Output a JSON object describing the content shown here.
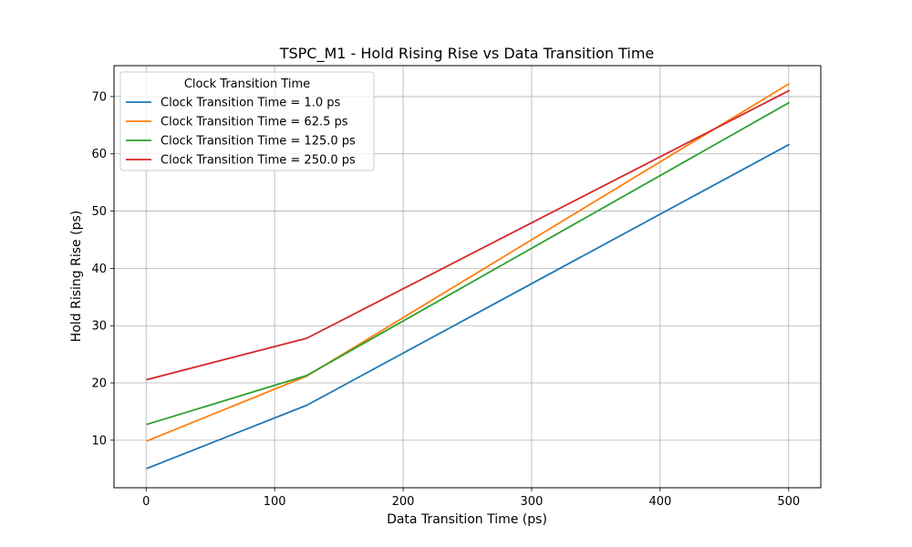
{
  "chart_data": {
    "type": "line",
    "title": "TSPC_M1 - Hold Rising Rise vs Data Transition Time",
    "xlabel": "Data Transition Time (ps)",
    "ylabel": "Hold Rising Rise (ps)",
    "x": [
      1.0,
      125.0,
      500.0
    ],
    "xlim": [
      -25,
      525
    ],
    "ylim": [
      1.7,
      75.4
    ],
    "xticks": [
      0,
      100,
      200,
      300,
      400,
      500
    ],
    "yticks": [
      10,
      20,
      30,
      40,
      50,
      60,
      70
    ],
    "grid": true,
    "legend": {
      "title": "Clock Transition Time",
      "placement": "upper-left"
    },
    "series": [
      {
        "name": "Clock Transition Time = 1.0 ps",
        "color": "#1f77b4",
        "values": [
          5.1,
          16.1,
          61.6
        ]
      },
      {
        "name": "Clock Transition Time = 62.5 ps",
        "color": "#ff7f0e",
        "values": [
          9.9,
          21.2,
          72.2
        ]
      },
      {
        "name": "Clock Transition Time = 125.0 ps",
        "color": "#2ca02c",
        "values": [
          12.8,
          21.3,
          68.9
        ]
      },
      {
        "name": "Clock Transition Time = 250.0 ps",
        "color": "#d62728",
        "values": [
          20.6,
          27.8,
          71.0
        ]
      }
    ]
  }
}
